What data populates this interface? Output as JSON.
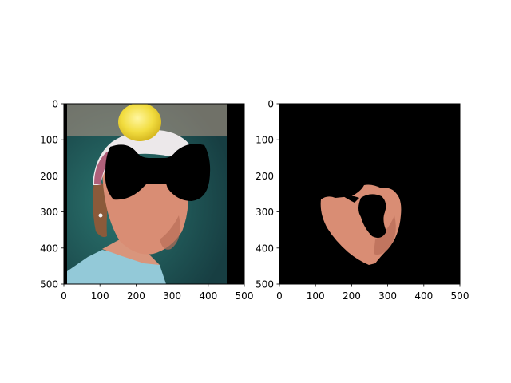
{
  "colors": {
    "background": "#ffffff",
    "mask_fill": "#000000",
    "frame": "#000000",
    "left_frame_bg": "#1f4f50",
    "teal_light": "#2a706c",
    "teal_mid": "#1f5a58",
    "skin": "#d98d74",
    "skin_shadow": "#b86d58",
    "hair": "#8a5a3a",
    "ball": "#f2dd40",
    "cap_white": "#ece8ea",
    "cap_pink": "#b0607a",
    "shirt": "#93c9d8"
  },
  "chart_data": [
    {
      "type": "image",
      "panel": "left",
      "content_description_visible": false,
      "x_ticks": [
        0,
        100,
        200,
        300,
        400,
        500
      ],
      "y_ticks": [
        0,
        100,
        200,
        300,
        400,
        500
      ],
      "x_tick_labels": [
        "0",
        "100",
        "200",
        "300",
        "400",
        "500"
      ],
      "y_tick_labels": [
        "0",
        "100",
        "200",
        "300",
        "400",
        "500"
      ],
      "xlim": [
        0,
        500
      ],
      "ylim": [
        500,
        0
      ],
      "image_extent_x": [
        0,
        450
      ],
      "title": "",
      "xlabel": "",
      "ylabel": "",
      "grid": false
    },
    {
      "type": "image",
      "panel": "right",
      "x_ticks": [
        0,
        100,
        200,
        300,
        400,
        500
      ],
      "y_ticks": [
        0,
        100,
        200,
        300,
        400,
        500
      ],
      "x_tick_labels": [
        "0",
        "100",
        "200",
        "300",
        "400",
        "500"
      ],
      "y_tick_labels": [
        "0",
        "100",
        "200",
        "300",
        "400",
        "500"
      ],
      "xlim": [
        0,
        500
      ],
      "ylim": [
        500,
        0
      ],
      "title": "",
      "xlabel": "",
      "ylabel": "",
      "grid": false
    }
  ]
}
